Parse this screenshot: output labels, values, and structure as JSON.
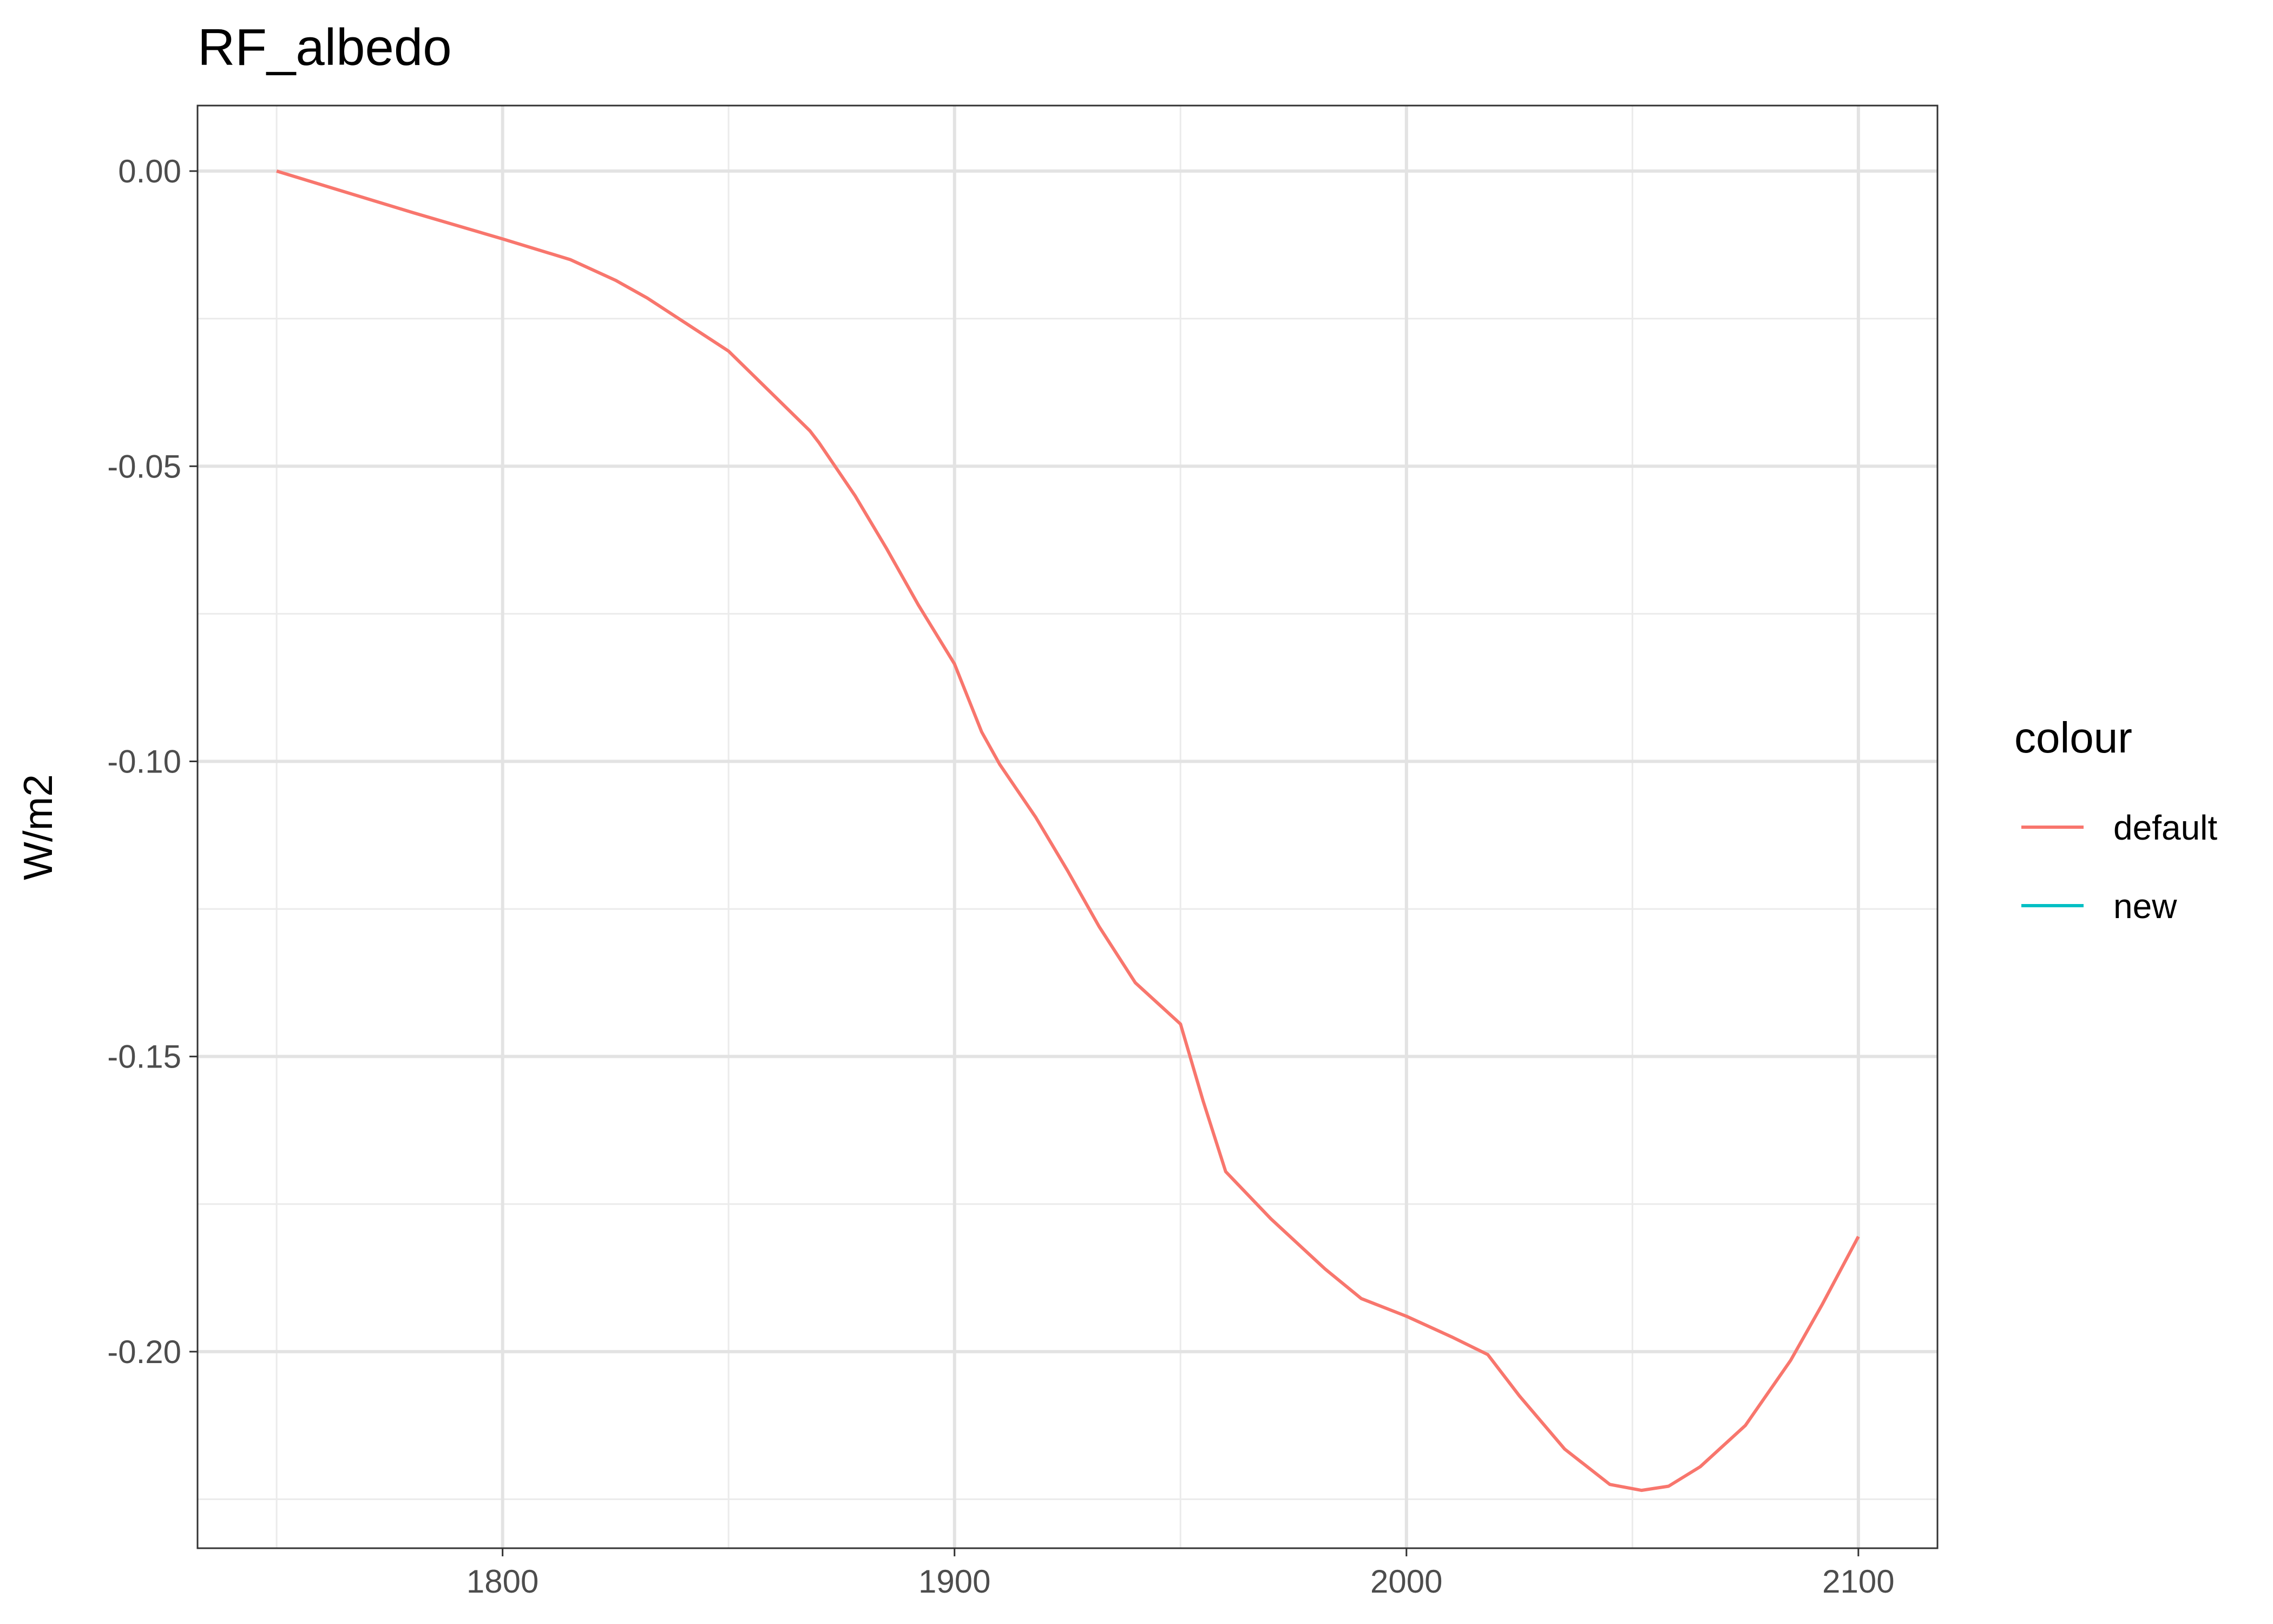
{
  "chart_data": {
    "type": "line",
    "title": "RF_albedo",
    "xlabel": "",
    "ylabel": "W/m2",
    "xlim": [
      1732.5,
      2117.5
    ],
    "ylim": [
      -0.2333,
      0.0111
    ],
    "x_ticks": [
      1800,
      1900,
      2000,
      2100
    ],
    "x_tick_labels": [
      "1800",
      "1900",
      "2000",
      "2100"
    ],
    "x_minor_ticks": [
      1750,
      1850,
      1950,
      2050
    ],
    "y_ticks": [
      0.0,
      -0.05,
      -0.1,
      -0.15,
      -0.2
    ],
    "y_tick_labels": [
      "0.00",
      "-0.05",
      "-0.10",
      "-0.15",
      "-0.20"
    ],
    "y_minor_ticks": [
      -0.025,
      -0.075,
      -0.125,
      -0.175,
      -0.225
    ],
    "grid": true,
    "legend": {
      "title": "colour",
      "position": "right",
      "entries": [
        {
          "label": "default",
          "color": "#F8766D"
        },
        {
          "label": "new",
          "color": "#00BFC4"
        }
      ]
    },
    "series": [
      {
        "name": "default",
        "color": "#F8766D",
        "x": [
          1750,
          1765,
          1780,
          1800,
          1815,
          1825,
          1832,
          1840,
          1850,
          1860,
          1868,
          1870,
          1878,
          1885,
          1892,
          1900,
          1906,
          1910,
          1918,
          1925,
          1932,
          1940,
          1945,
          1950,
          1955,
          1960,
          1970,
          1982,
          1990,
          2000,
          2010,
          2018,
          2025,
          2035,
          2045,
          2052,
          2058,
          2065,
          2075,
          2085,
          2092,
          2100
        ],
        "values": [
          0.0,
          -0.0035,
          -0.007,
          -0.0115,
          -0.015,
          -0.0185,
          -0.0215,
          -0.0255,
          -0.0305,
          -0.038,
          -0.044,
          -0.046,
          -0.055,
          -0.064,
          -0.0735,
          -0.0835,
          -0.095,
          -0.1005,
          -0.1095,
          -0.1185,
          -0.128,
          -0.1375,
          -0.141,
          -0.1445,
          -0.1575,
          -0.1695,
          -0.1775,
          -0.186,
          -0.191,
          -0.194,
          -0.1975,
          -0.2005,
          -0.2075,
          -0.2165,
          -0.2225,
          -0.2235,
          -0.2228,
          -0.2195,
          -0.2125,
          -0.2015,
          -0.192,
          -0.1805
        ]
      },
      {
        "name": "new",
        "color": "#00BFC4",
        "x": [],
        "values": []
      }
    ]
  }
}
